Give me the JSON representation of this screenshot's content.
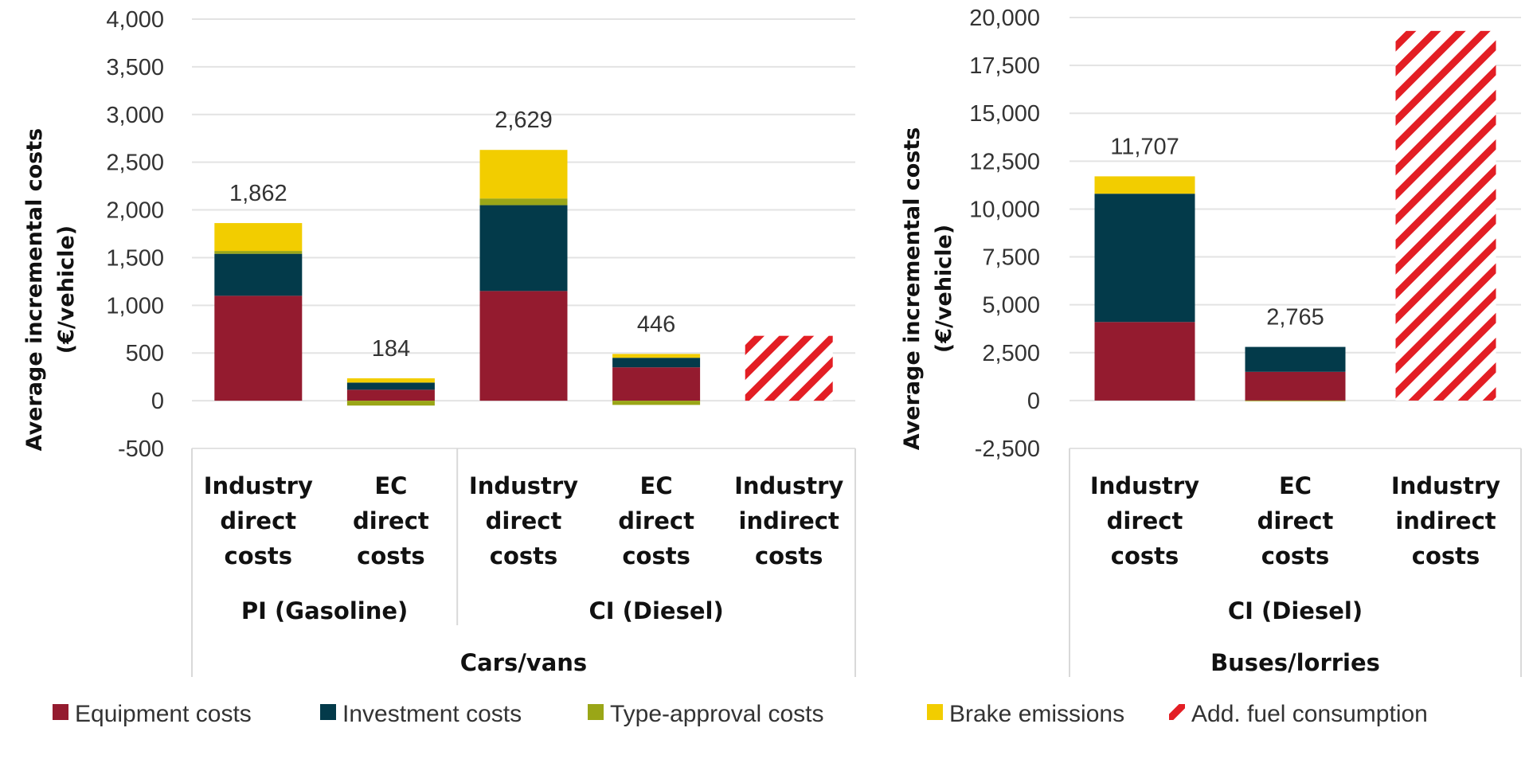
{
  "colors": {
    "Equipment costs": "#941b2f",
    "Investment costs": "#033a4a",
    "Type-approval costs": "#9aa617",
    "Brake emissions": "#f2cd00",
    "Add. fuel consumption": "#e31e24"
  },
  "legend": [
    "Equipment costs",
    "Investment costs",
    "Type-approval costs",
    "Brake emissions",
    "Add. fuel consumption"
  ],
  "chart_data": [
    {
      "type": "bar",
      "stacked": true,
      "ylabel": "Average incremental costs (€/vehicle)",
      "ylim": [
        -500,
        4000
      ],
      "yticks": [
        -500,
        0,
        500,
        1000,
        1500,
        2000,
        2500,
        3000,
        3500,
        4000
      ],
      "yticklabels": [
        "-500",
        "0",
        "500",
        "1,000",
        "1,500",
        "2,000",
        "2,500",
        "3,000",
        "3,500",
        "4,000"
      ],
      "grid": true,
      "categories": [
        "Industry direct costs",
        "EC direct costs",
        "Industry direct costs",
        "EC direct costs",
        "Industry indirect costs"
      ],
      "groups": [
        {
          "label": "PI (Gasoline)",
          "span": 2
        },
        {
          "label": "CI (Diesel)",
          "span": 3
        }
      ],
      "supergroup": "Cars/vans",
      "series": [
        {
          "name": "Equipment costs",
          "values": [
            1100,
            115,
            1150,
            350,
            0
          ]
        },
        {
          "name": "Investment costs",
          "values": [
            440,
            75,
            900,
            100,
            0
          ]
        },
        {
          "name": "Type-approval costs",
          "values": [
            30,
            -51,
            70,
            -44,
            0
          ]
        },
        {
          "name": "Brake emissions",
          "values": [
            292,
            45,
            509,
            40,
            0
          ]
        },
        {
          "name": "Add. fuel consumption",
          "values": [
            0,
            0,
            0,
            0,
            680
          ],
          "pattern": "hatch"
        }
      ],
      "data_labels": [
        "1,862",
        "184",
        "2,629",
        "446",
        ""
      ]
    },
    {
      "type": "bar",
      "stacked": true,
      "ylabel": "Average incremental costs (€/vehicle)",
      "ylim": [
        -2500,
        20000
      ],
      "yticks": [
        -2500,
        0,
        2500,
        5000,
        7500,
        10000,
        12500,
        15000,
        17500,
        20000
      ],
      "yticklabels": [
        "-2,500",
        "0",
        "2,500",
        "5,000",
        "7,500",
        "10,000",
        "12,500",
        "15,000",
        "17,500",
        "20,000"
      ],
      "grid": true,
      "categories": [
        "Industry direct costs",
        "EC direct costs",
        "Industry indirect costs"
      ],
      "groups": [
        {
          "label": "CI (Diesel)",
          "span": 3
        }
      ],
      "supergroup": "Buses/lorries",
      "series": [
        {
          "name": "Equipment costs",
          "values": [
            4100,
            1500,
            0
          ]
        },
        {
          "name": "Investment costs",
          "values": [
            6700,
            1300,
            0
          ]
        },
        {
          "name": "Type-approval costs",
          "values": [
            0,
            -35,
            0
          ]
        },
        {
          "name": "Brake emissions",
          "values": [
            907,
            0,
            0
          ]
        },
        {
          "name": "Add. fuel consumption",
          "values": [
            0,
            0,
            19300
          ],
          "pattern": "hatch"
        }
      ],
      "data_labels": [
        "11,707",
        "2,765",
        ""
      ]
    }
  ]
}
